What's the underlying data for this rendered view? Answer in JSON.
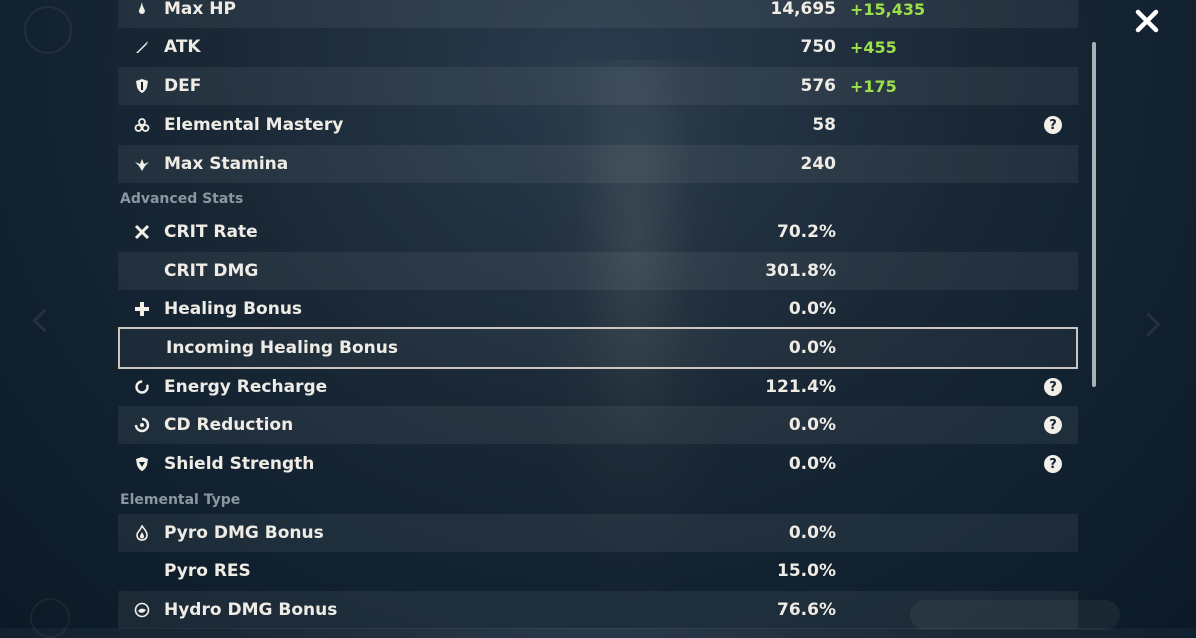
{
  "close_label": "✕",
  "base_stats": [
    {
      "icon": "drop-icon",
      "glyph": "🌢",
      "label": "Max HP",
      "value": "14,695",
      "bonus": "+15,435",
      "help": false
    },
    {
      "icon": "sword-icon",
      "glyph": "/",
      "label": "ATK",
      "value": "750",
      "bonus": "+455",
      "help": false
    },
    {
      "icon": "shield-icon",
      "glyph": "◗",
      "label": "DEF",
      "value": "576",
      "bonus": "+175",
      "help": false
    },
    {
      "icon": "elemental-mastery-icon",
      "glyph": "♧",
      "label": "Elemental Mastery",
      "value": "58",
      "bonus": "",
      "help": true
    },
    {
      "icon": "stamina-icon",
      "glyph": "❦",
      "label": "Max Stamina",
      "value": "240",
      "bonus": "",
      "help": false
    }
  ],
  "advanced_title": "Advanced Stats",
  "advanced_stats": [
    {
      "icon": "crit-rate-icon",
      "glyph": "✖",
      "label": "CRIT Rate",
      "value": "70.2%",
      "help": false
    },
    {
      "icon": "",
      "glyph": "",
      "label": "CRIT DMG",
      "value": "301.8%",
      "help": false
    },
    {
      "icon": "healing-cross-icon",
      "glyph": "✚",
      "label": "Healing Bonus",
      "value": "0.0%",
      "help": false
    },
    {
      "icon": "",
      "glyph": "",
      "label": "Incoming Healing Bonus",
      "value": "0.0%",
      "help": false
    },
    {
      "icon": "energy-recharge-icon",
      "glyph": "◌",
      "label": "Energy Recharge",
      "value": "121.4%",
      "help": true
    },
    {
      "icon": "cd-reduction-icon",
      "glyph": "◔",
      "label": "CD Reduction",
      "value": "0.0%",
      "help": true
    },
    {
      "icon": "shield-strength-icon",
      "glyph": "⛉",
      "label": "Shield Strength",
      "value": "0.0%",
      "help": true
    }
  ],
  "elemental_title": "Elemental Type",
  "elemental_stats": [
    {
      "icon": "pyro-icon",
      "glyph": "♨",
      "label": "Pyro DMG Bonus",
      "value": "0.0%",
      "help": false
    },
    {
      "icon": "",
      "glyph": "",
      "label": "Pyro RES",
      "value": "15.0%",
      "help": false
    },
    {
      "icon": "hydro-icon",
      "glyph": "◍",
      "label": "Hydro DMG Bonus",
      "value": "76.6%",
      "help": false
    }
  ],
  "help_glyph": "?",
  "colors": {
    "bonus": "#9be04a",
    "text": "#efece5",
    "section": "#8b96a0"
  }
}
